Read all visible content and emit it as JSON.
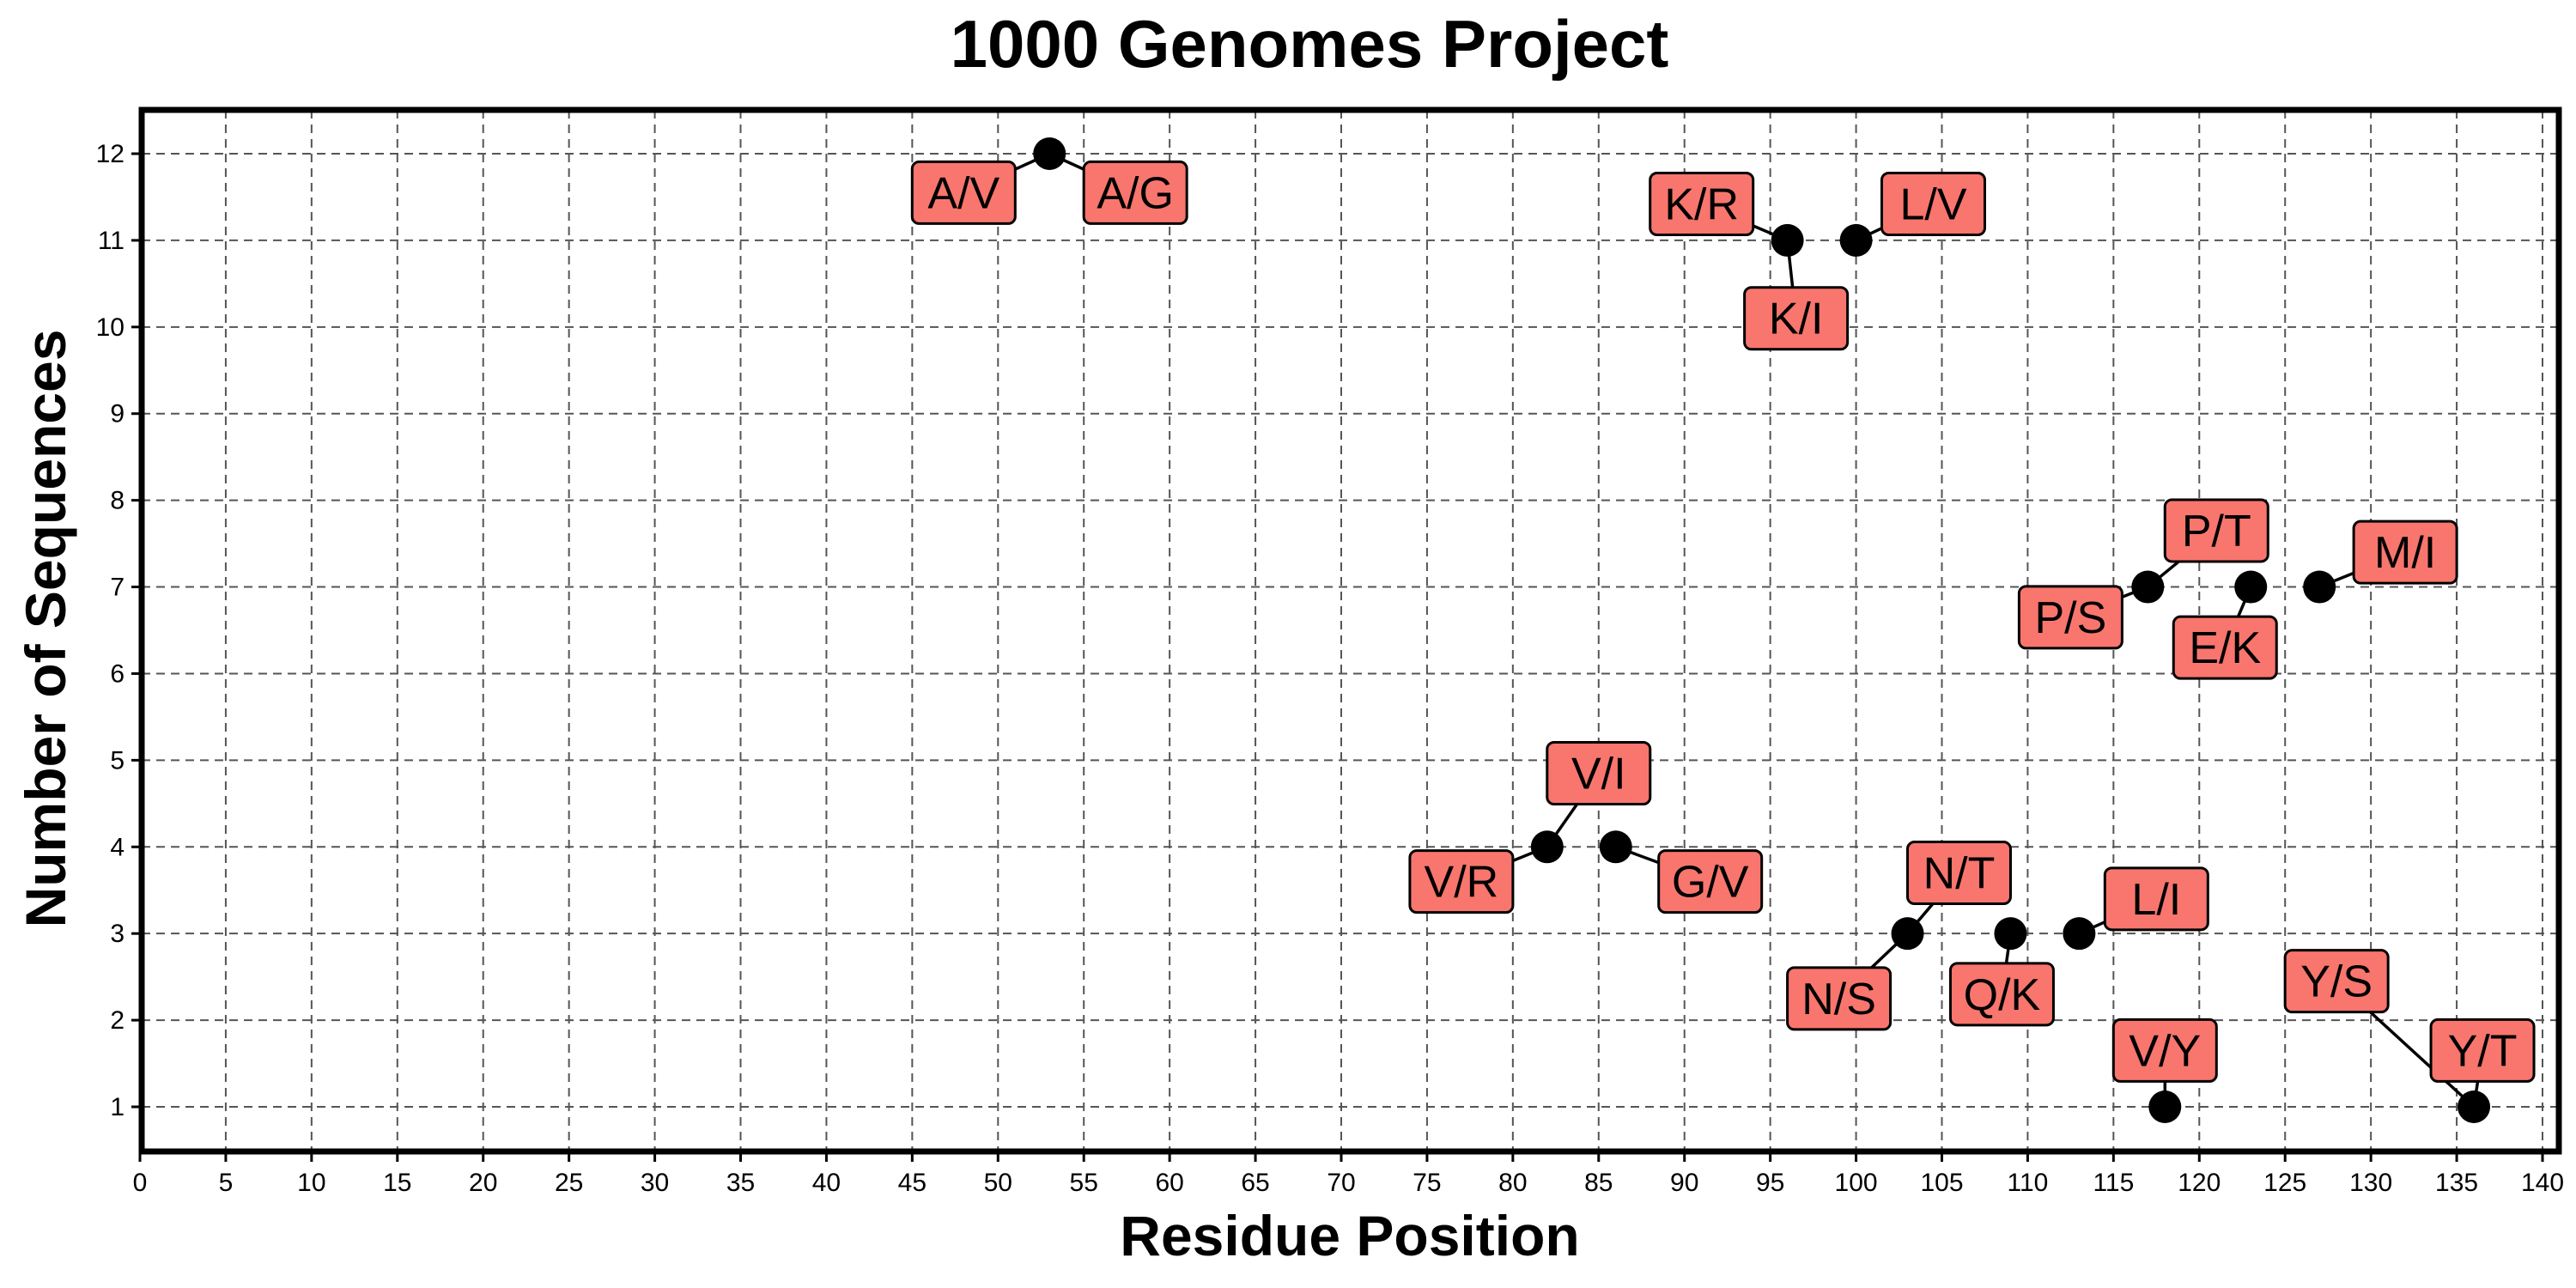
{
  "chart_data": {
    "type": "scatter",
    "title": "1000 Genomes Project",
    "xlabel": "Residue Position",
    "ylabel": "Number of Sequences",
    "xlim": [
      0,
      141
    ],
    "ylim": [
      0.5,
      12.5
    ],
    "xticks": [
      0,
      5,
      10,
      15,
      20,
      25,
      30,
      35,
      40,
      45,
      50,
      55,
      60,
      65,
      70,
      75,
      80,
      85,
      90,
      95,
      100,
      105,
      110,
      115,
      120,
      125,
      130,
      135,
      140
    ],
    "yticks": [
      1,
      2,
      3,
      4,
      5,
      6,
      7,
      8,
      9,
      10,
      11,
      12
    ],
    "grid": true,
    "point_color": "#000000",
    "label_color": "#f8766d",
    "points": [
      {
        "x": 53,
        "y": 12,
        "labels": [
          {
            "text": "A/V",
            "lx": 48,
            "ly": 11.55
          },
          {
            "text": "A/G",
            "lx": 58,
            "ly": 11.55
          }
        ]
      },
      {
        "x": 96,
        "y": 11,
        "labels": [
          {
            "text": "K/R",
            "lx": 91,
            "ly": 11.42
          },
          {
            "text": "K/I",
            "lx": 96.5,
            "ly": 10.1
          }
        ]
      },
      {
        "x": 100,
        "y": 11,
        "labels": [
          {
            "text": "L/V",
            "lx": 104.5,
            "ly": 11.42
          }
        ]
      },
      {
        "x": 117,
        "y": 7,
        "labels": [
          {
            "text": "P/T",
            "lx": 121,
            "ly": 7.65
          },
          {
            "text": "P/S",
            "lx": 112.5,
            "ly": 6.65
          }
        ]
      },
      {
        "x": 123,
        "y": 7,
        "labels": [
          {
            "text": "E/K",
            "lx": 121.5,
            "ly": 6.3
          }
        ]
      },
      {
        "x": 127,
        "y": 7,
        "labels": [
          {
            "text": "M/I",
            "lx": 132,
            "ly": 7.4
          }
        ]
      },
      {
        "x": 82,
        "y": 4,
        "labels": [
          {
            "text": "V/I",
            "lx": 85,
            "ly": 4.85
          },
          {
            "text": "V/R",
            "lx": 77,
            "ly": 3.6
          }
        ]
      },
      {
        "x": 86,
        "y": 4,
        "labels": [
          {
            "text": "G/V",
            "lx": 91.5,
            "ly": 3.6
          }
        ]
      },
      {
        "x": 103,
        "y": 3,
        "labels": [
          {
            "text": "N/T",
            "lx": 106,
            "ly": 3.7
          },
          {
            "text": "N/S",
            "lx": 99,
            "ly": 2.25
          }
        ]
      },
      {
        "x": 109,
        "y": 3,
        "labels": [
          {
            "text": "Q/K",
            "lx": 108.5,
            "ly": 2.3
          }
        ]
      },
      {
        "x": 113,
        "y": 3,
        "labels": [
          {
            "text": "L/I",
            "lx": 117.5,
            "ly": 3.4
          }
        ]
      },
      {
        "x": 118,
        "y": 1,
        "labels": [
          {
            "text": "V/Y",
            "lx": 118,
            "ly": 1.65
          }
        ]
      },
      {
        "x": 136,
        "y": 1,
        "labels": [
          {
            "text": "Y/T",
            "lx": 136.5,
            "ly": 1.65
          },
          {
            "text": "Y/S",
            "lx": 128,
            "ly": 2.45
          }
        ]
      }
    ]
  }
}
